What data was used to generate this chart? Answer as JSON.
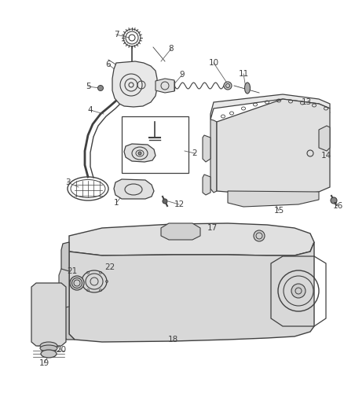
{
  "bg_color": "#ffffff",
  "line_color": "#404040",
  "label_color": "#404040",
  "lw": 0.9
}
